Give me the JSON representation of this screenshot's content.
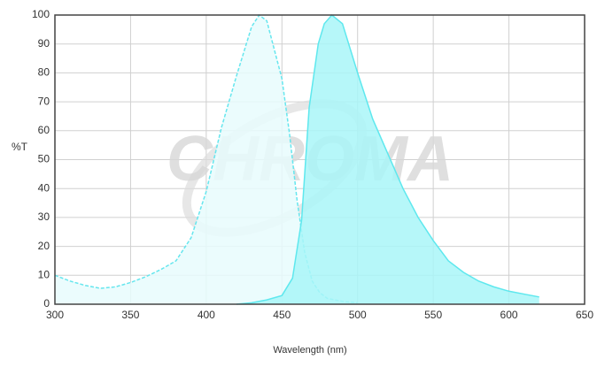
{
  "chart_data": {
    "type": "area-line",
    "watermark": "CHROMA",
    "x_label": "Wavelength (nm)",
    "y_label": "%T",
    "xlim": [
      300,
      650
    ],
    "xticks": [
      300,
      350,
      400,
      450,
      500,
      550,
      600,
      650
    ],
    "ylim": [
      0,
      100
    ],
    "yticks": [
      0,
      10,
      20,
      30,
      40,
      50,
      60,
      70,
      80,
      90,
      100
    ],
    "grid": true,
    "series": [
      {
        "color": "#66e6ee",
        "fill": "#e8fbfd",
        "dashed": true,
        "x": [
          300,
          310,
          320,
          330,
          340,
          350,
          360,
          370,
          380,
          390,
          400,
          410,
          420,
          430,
          435,
          440,
          450,
          455,
          460,
          465,
          470,
          475,
          480,
          490,
          500
        ],
        "values": [
          10,
          8,
          6.5,
          5.5,
          6,
          7.5,
          9.5,
          12,
          15,
          23,
          39,
          61,
          79,
          96,
          100,
          98,
          78,
          59,
          36,
          18,
          8,
          4,
          2,
          1,
          0.5
        ]
      },
      {
        "color": "#5ee8ee",
        "fill": "#a9f6f8",
        "dashed": false,
        "x": [
          420,
          430,
          440,
          450,
          457,
          463,
          468,
          474,
          478,
          483,
          490,
          500,
          510,
          520,
          530,
          540,
          550,
          560,
          570,
          580,
          590,
          600,
          610,
          620
        ],
        "values": [
          0,
          0.5,
          1.5,
          3,
          9,
          29,
          68,
          90,
          97,
          100,
          97,
          80,
          64,
          52,
          40,
          30,
          22,
          15,
          11,
          8,
          6,
          4.5,
          3.5,
          2.5
        ]
      }
    ]
  }
}
